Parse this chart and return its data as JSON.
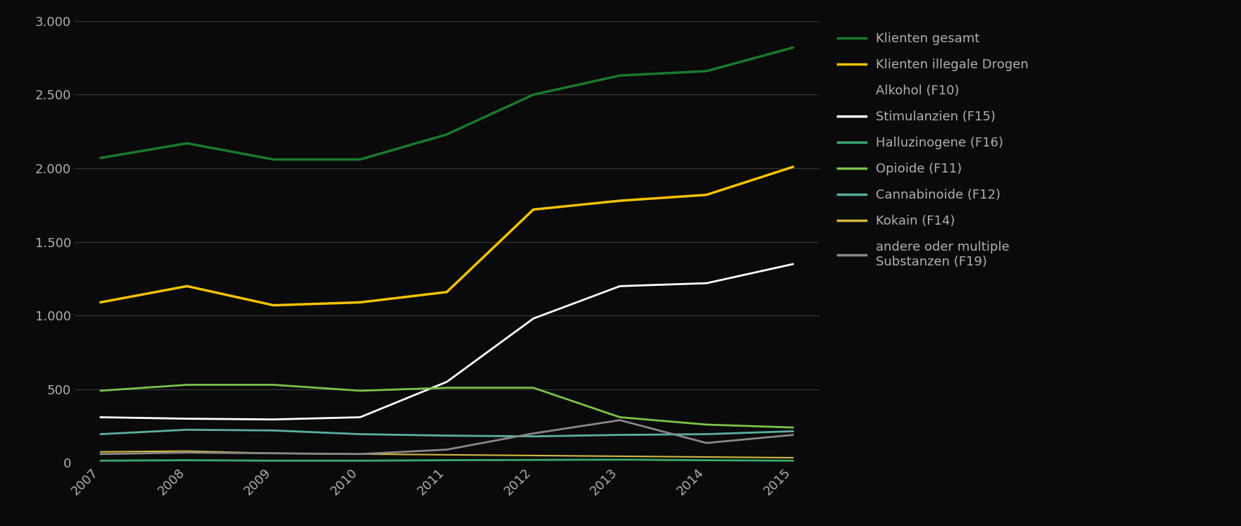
{
  "years": [
    2007,
    2008,
    2009,
    2010,
    2011,
    2012,
    2013,
    2014,
    2015
  ],
  "series": [
    {
      "label": "Klienten gesamt",
      "color": "#1a7a2e",
      "linewidth": 2.5,
      "values": [
        2070,
        2170,
        2060,
        2060,
        2230,
        2500,
        2630,
        2660,
        2820
      ]
    },
    {
      "label": "Klienten illegale Drogen",
      "color": "#f5c300",
      "linewidth": 2.5,
      "values": [
        1090,
        1200,
        1070,
        1090,
        1160,
        1720,
        1780,
        1820,
        2010
      ]
    },
    {
      "label": "Alkohol (F10)",
      "color": "none",
      "linewidth": 0,
      "values": [
        null,
        null,
        null,
        null,
        null,
        null,
        null,
        null,
        null
      ]
    },
    {
      "label": "Stimulanzien (F15)",
      "color": "#ffffff",
      "linewidth": 2.0,
      "values": [
        310,
        300,
        295,
        310,
        550,
        980,
        1200,
        1220,
        1350
      ]
    },
    {
      "label": "Halluzinogene (F16)",
      "color": "#3aaa6e",
      "linewidth": 2.0,
      "values": [
        15,
        18,
        15,
        15,
        18,
        20,
        22,
        18,
        15
      ]
    },
    {
      "label": "Opioide (F11)",
      "color": "#7bc44a",
      "linewidth": 2.0,
      "values": [
        490,
        530,
        530,
        490,
        510,
        510,
        310,
        260,
        240
      ]
    },
    {
      "label": "Cannabinoide (F12)",
      "color": "#5ab0a0",
      "linewidth": 2.0,
      "values": [
        195,
        225,
        220,
        195,
        185,
        180,
        190,
        195,
        215
      ]
    },
    {
      "label": "Kokain (F14)",
      "color": "#d4b840",
      "linewidth": 1.5,
      "values": [
        75,
        80,
        65,
        60,
        55,
        50,
        45,
        40,
        35
      ]
    },
    {
      "label": "andere oder multiple\nSubstanzen (F19)",
      "color": "#888888",
      "linewidth": 2.0,
      "values": [
        60,
        70,
        65,
        60,
        90,
        200,
        290,
        135,
        190
      ]
    }
  ],
  "ylim": [
    0,
    3000
  ],
  "yticks": [
    0,
    500,
    1000,
    1500,
    2000,
    2500,
    3000
  ],
  "ytick_labels": [
    "0",
    "500",
    "1.000",
    "1.500",
    "2.000",
    "2.500",
    "3.000"
  ],
  "background_color": "#0a0a0a",
  "text_color": "#b0b0b0",
  "grid_color": "#3a3a3a",
  "figsize": [
    17.6,
    7.47
  ],
  "dpi": 100
}
